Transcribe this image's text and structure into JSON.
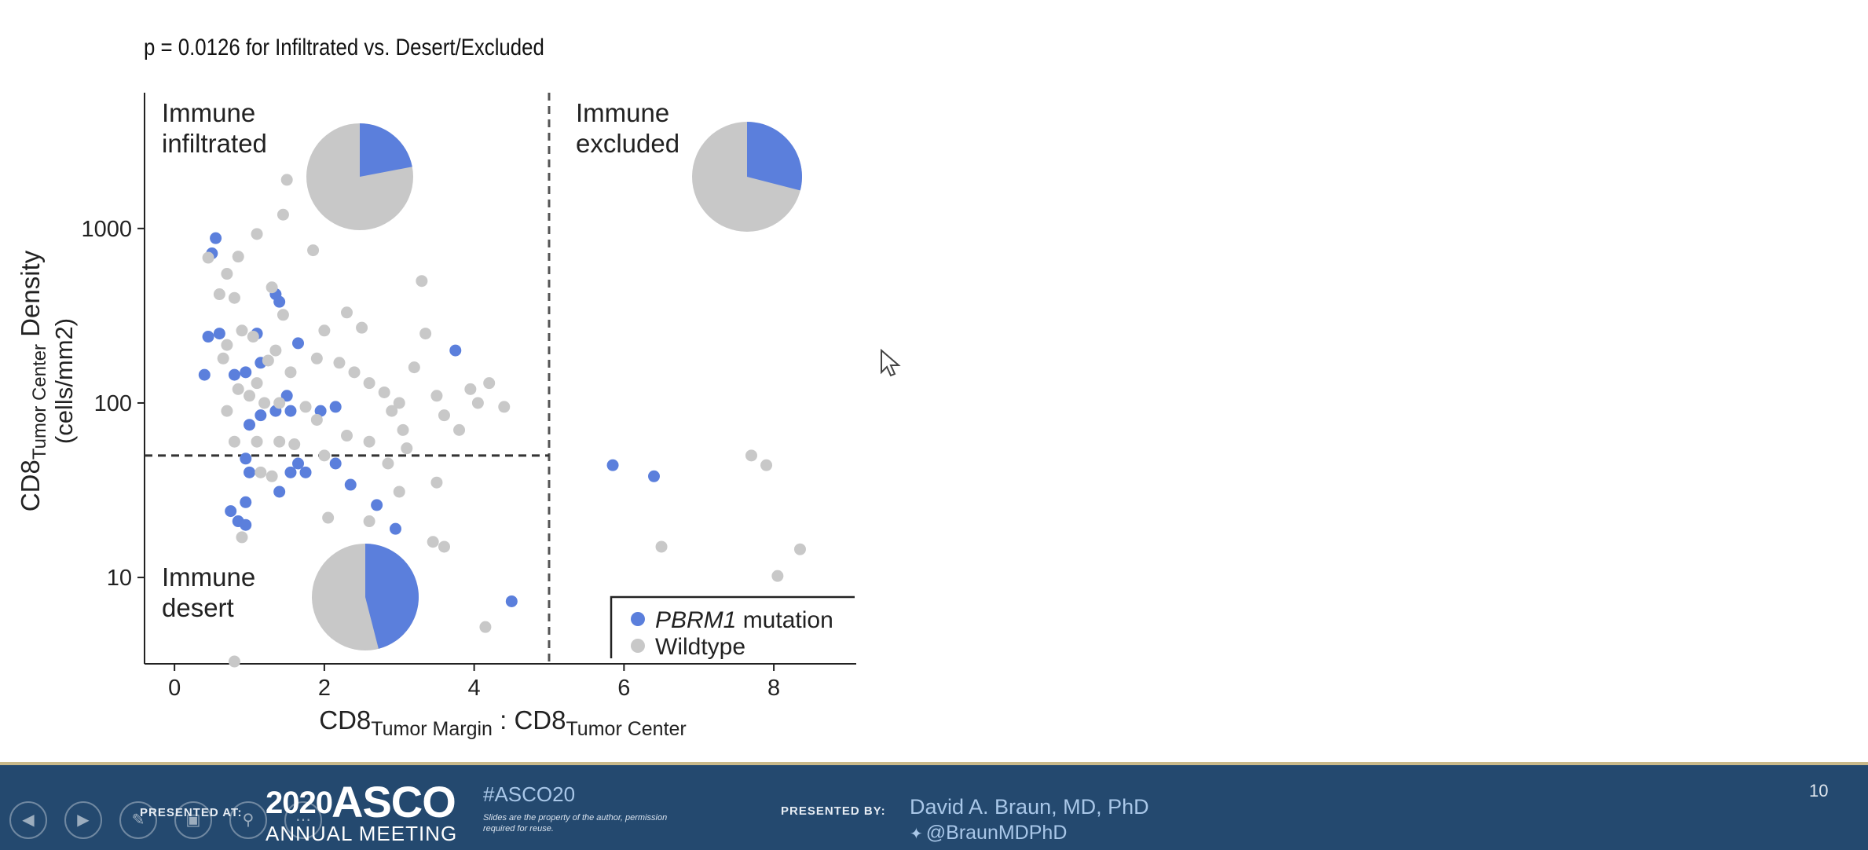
{
  "slide": {
    "pvalue_text": "p = 0.0126 for Infiltrated vs. Desert/Excluded",
    "slide_number": "10"
  },
  "chart_data": {
    "type": "scatter",
    "xlabel": "CD8 Tumor Margin : CD8 Tumor Center",
    "ylabel": "CD8 Tumor Center Density (cells/mm2)",
    "xlim": [
      -0.4,
      9.1
    ],
    "ylim": [
      3.2,
      6000
    ],
    "yscale": "log",
    "x_ticks": [
      "0",
      "2",
      "4",
      "6",
      "8"
    ],
    "y_ticks": [
      "10",
      "100",
      "1000"
    ],
    "x_threshold": 5,
    "y_threshold": 50,
    "quadrant_labels": {
      "infiltrated": [
        "Immune",
        "infiltrated"
      ],
      "excluded": [
        "Immune",
        "excluded"
      ],
      "desert": [
        "Immune",
        "desert"
      ]
    },
    "legend": {
      "position": "bottom-right",
      "entries": [
        {
          "name": "PBRM1",
          "suffix": " mutation",
          "color": "#5b7fdc"
        },
        {
          "name": "Wildtype",
          "suffix": "",
          "color": "#c8c8c8"
        }
      ]
    },
    "pies": [
      {
        "quadrant": "infiltrated",
        "mutation_fraction": 0.22
      },
      {
        "quadrant": "excluded",
        "mutation_fraction": 0.29
      },
      {
        "quadrant": "desert",
        "mutation_fraction": 0.46
      }
    ],
    "series": [
      {
        "name": "PBRM1",
        "color": "#5b7fdc",
        "points": [
          [
            0.55,
            880
          ],
          [
            0.5,
            720
          ],
          [
            0.45,
            240
          ],
          [
            0.6,
            250
          ],
          [
            0.4,
            145
          ],
          [
            0.8,
            145
          ],
          [
            0.95,
            150
          ],
          [
            1.1,
            250
          ],
          [
            1.35,
            420
          ],
          [
            1.4,
            380
          ],
          [
            1.15,
            170
          ],
          [
            1.65,
            220
          ],
          [
            1.5,
            110
          ],
          [
            1.35,
            90
          ],
          [
            1.0,
            75
          ],
          [
            1.15,
            85
          ],
          [
            1.55,
            90
          ],
          [
            1.95,
            90
          ],
          [
            2.15,
            95
          ],
          [
            3.75,
            200
          ],
          [
            0.95,
            48
          ],
          [
            1.0,
            40
          ],
          [
            1.55,
            40
          ],
          [
            1.65,
            45
          ],
          [
            1.75,
            40
          ],
          [
            2.15,
            45
          ],
          [
            2.35,
            34
          ],
          [
            2.7,
            26
          ],
          [
            1.4,
            31
          ],
          [
            0.95,
            27
          ],
          [
            0.75,
            24
          ],
          [
            0.85,
            21
          ],
          [
            0.95,
            20
          ],
          [
            2.95,
            19
          ],
          [
            4.5,
            7.3
          ],
          [
            5.85,
            44
          ],
          [
            6.4,
            38
          ]
        ]
      },
      {
        "name": "Wildtype",
        "color": "#c8c8c8",
        "points": [
          [
            1.5,
            1900
          ],
          [
            1.45,
            1200
          ],
          [
            1.1,
            930
          ],
          [
            1.85,
            750
          ],
          [
            0.85,
            690
          ],
          [
            0.45,
            680
          ],
          [
            0.7,
            550
          ],
          [
            1.3,
            460
          ],
          [
            0.6,
            420
          ],
          [
            0.8,
            400
          ],
          [
            1.45,
            320
          ],
          [
            2.3,
            330
          ],
          [
            2.0,
            260
          ],
          [
            0.9,
            260
          ],
          [
            1.05,
            240
          ],
          [
            0.7,
            215
          ],
          [
            1.35,
            200
          ],
          [
            1.9,
            180
          ],
          [
            2.2,
            170
          ],
          [
            1.55,
            150
          ],
          [
            2.4,
            150
          ],
          [
            2.6,
            130
          ],
          [
            2.8,
            115
          ],
          [
            3.0,
            100
          ],
          [
            1.1,
            130
          ],
          [
            0.85,
            120
          ],
          [
            1.0,
            110
          ],
          [
            1.2,
            100
          ],
          [
            1.4,
            100
          ],
          [
            1.75,
            95
          ],
          [
            1.9,
            80
          ],
          [
            0.7,
            90
          ],
          [
            0.8,
            60
          ],
          [
            1.1,
            60
          ],
          [
            1.4,
            60
          ],
          [
            1.6,
            58
          ],
          [
            2.0,
            50
          ],
          [
            2.3,
            65
          ],
          [
            2.6,
            60
          ],
          [
            2.85,
            45
          ],
          [
            3.1,
            55
          ],
          [
            3.3,
            500
          ],
          [
            3.35,
            250
          ],
          [
            3.2,
            160
          ],
          [
            3.5,
            110
          ],
          [
            3.6,
            85
          ],
          [
            3.8,
            70
          ],
          [
            3.95,
            120
          ],
          [
            4.05,
            100
          ],
          [
            4.2,
            130
          ],
          [
            4.4,
            95
          ],
          [
            0.65,
            180
          ],
          [
            1.25,
            175
          ],
          [
            2.5,
            270
          ],
          [
            2.9,
            90
          ],
          [
            3.05,
            70
          ],
          [
            1.15,
            40
          ],
          [
            1.3,
            38
          ],
          [
            2.05,
            22
          ],
          [
            2.6,
            21
          ],
          [
            3.0,
            31
          ],
          [
            3.45,
            16
          ],
          [
            3.6,
            15
          ],
          [
            3.5,
            35
          ],
          [
            0.9,
            17
          ],
          [
            4.15,
            5.2
          ],
          [
            0.8,
            3.3
          ],
          [
            7.7,
            50
          ],
          [
            7.9,
            44
          ],
          [
            6.5,
            15
          ],
          [
            8.05,
            10.2
          ],
          [
            8.35,
            14.5
          ]
        ]
      }
    ]
  },
  "footer": {
    "presented_at": "PRESENTED AT:",
    "asco_year": "2020",
    "asco_name": "ASCO",
    "asco_meeting": "ANNUAL MEETING",
    "hashtag": "#ASCO20",
    "disclaimer": "Slides are the property of the author, permission required for reuse.",
    "presented_by": "PRESENTED BY:",
    "presenter": "David A. Braun, MD, PhD",
    "twitter": "@BraunMDPhD"
  },
  "nav": {
    "icons": [
      "prev-icon",
      "next-icon",
      "pen-icon",
      "grid-icon",
      "zoom-icon",
      "more-icon"
    ]
  },
  "colors": {
    "footer_bg": "#24496f",
    "mutation": "#5b7fdc",
    "wildtype": "#c8c8c8"
  }
}
